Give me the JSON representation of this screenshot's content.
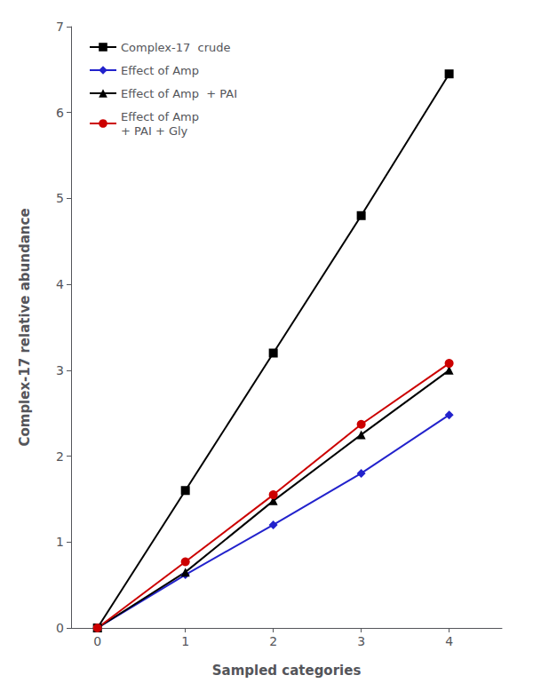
{
  "chart_data": {
    "type": "line",
    "xlabel": "Sampled categories",
    "ylabel": "Complex-17 relative abundance",
    "x": [
      0,
      1,
      2,
      3,
      4
    ],
    "series": [
      {
        "name": "Complex-17  crude",
        "color": "#000000",
        "marker": "square",
        "values": [
          0,
          1.6,
          3.2,
          4.8,
          6.45
        ]
      },
      {
        "name": "Effect of Amp",
        "color": "#2222cc",
        "marker": "diamond",
        "values": [
          0,
          0.62,
          1.2,
          1.8,
          2.48
        ]
      },
      {
        "name": "Effect of Amp  + PAI",
        "color": "#000000",
        "marker": "triangle",
        "values": [
          0,
          0.65,
          1.48,
          2.25,
          3.0
        ]
      },
      {
        "name": "Effect of Amp\n+ PAI + Gly",
        "color": "#cc0000",
        "marker": "circle",
        "values": [
          0,
          0.77,
          1.55,
          2.37,
          3.08
        ]
      }
    ],
    "xlim": [
      -0.3,
      4.6
    ],
    "ylim": [
      0,
      7
    ],
    "xticks": [
      0,
      1,
      2,
      3,
      4
    ],
    "yticks": [
      0,
      1,
      2,
      3,
      4,
      5,
      6,
      7
    ],
    "grid": false,
    "legend": "upper left"
  }
}
